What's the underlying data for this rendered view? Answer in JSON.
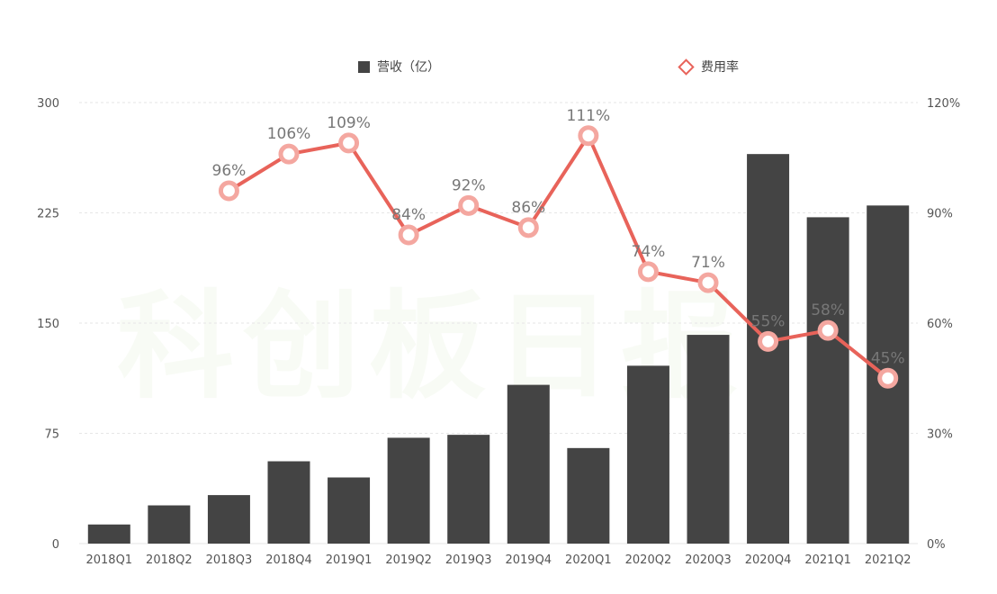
{
  "legend": {
    "bar_label": "营收（亿）",
    "line_label": "费用率"
  },
  "watermark": "科创板日报",
  "colors": {
    "bar": "#444444",
    "line": "#e8635a",
    "grid": "#e6e6e6",
    "axis_text": "#555555",
    "label_text": "#777777"
  },
  "chart_data": {
    "type": "bar",
    "categories": [
      "2018Q1",
      "2018Q2",
      "2018Q3",
      "2018Q4",
      "2019Q1",
      "2019Q2",
      "2019Q3",
      "2019Q4",
      "2020Q1",
      "2020Q2",
      "2020Q3",
      "2020Q4",
      "2021Q1",
      "2021Q2"
    ],
    "series": [
      {
        "name": "营收（亿）",
        "type": "bar",
        "axis": "left",
        "values": [
          13,
          26,
          33,
          56,
          45,
          72,
          74,
          108,
          65,
          121,
          142,
          265,
          222,
          230
        ]
      },
      {
        "name": "费用率",
        "type": "line",
        "axis": "right",
        "values": [
          null,
          null,
          96,
          106,
          109,
          84,
          92,
          86,
          111,
          74,
          71,
          55,
          58,
          45
        ],
        "labels": [
          "",
          "",
          "96%",
          "106%",
          "109%",
          "84%",
          "92%",
          "86%",
          "111%",
          "74%",
          "71%",
          "55%",
          "58%",
          "45%"
        ]
      }
    ],
    "y_left": {
      "ylim": [
        0,
        300
      ],
      "ticks": [
        "0",
        "75",
        "150",
        "225",
        "300"
      ]
    },
    "y_right": {
      "ylim": [
        0,
        120
      ],
      "ticks": [
        "0%",
        "30%",
        "60%",
        "90%",
        "120%"
      ]
    },
    "grid": true,
    "legend_position": "top"
  }
}
